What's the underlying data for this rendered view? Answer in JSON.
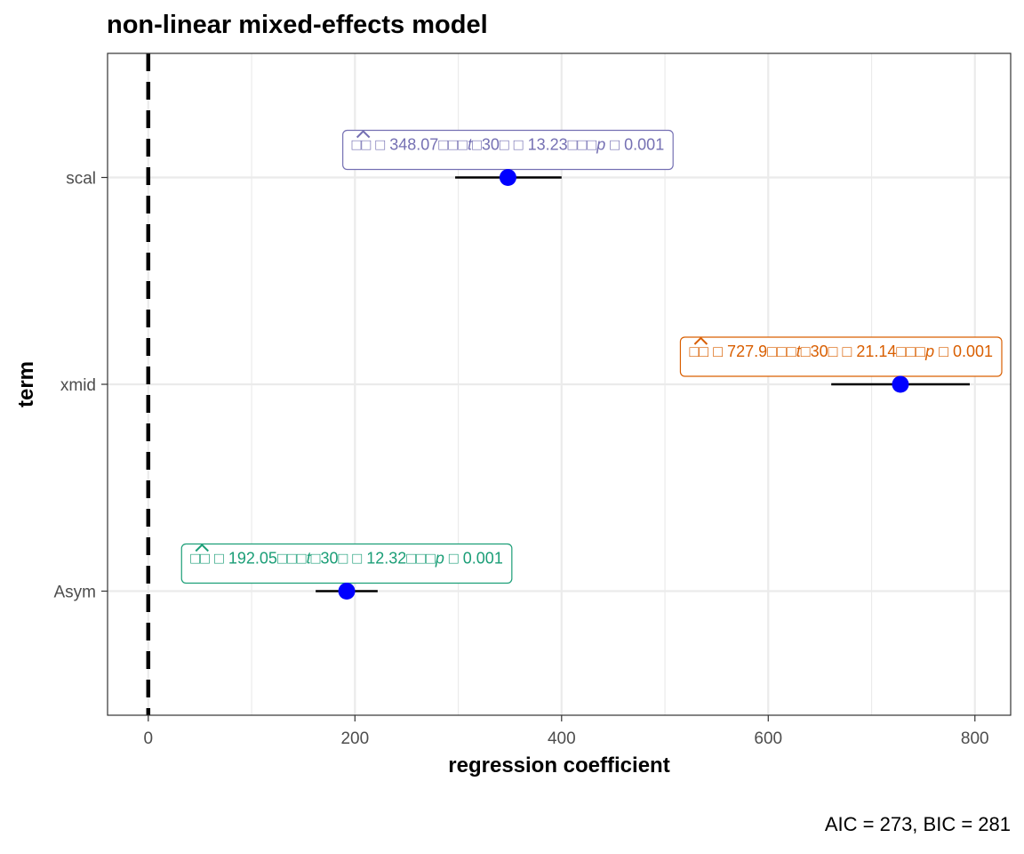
{
  "chart_data": {
    "type": "scatter",
    "title": "non-linear mixed-effects model",
    "xlabel": "regression coefficient",
    "ylabel": "term",
    "xlim": [
      -39.4,
      834.6
    ],
    "x_ticks": [
      0,
      200,
      400,
      600,
      800
    ],
    "x_minor_ticks": [
      100,
      300,
      500,
      700
    ],
    "categories": [
      "Asym",
      "xmid",
      "scal"
    ],
    "estimates": [
      192.05,
      727.9,
      348.07
    ],
    "ci_low": [
      162,
      661,
      297
    ],
    "ci_high": [
      222,
      795,
      400
    ],
    "reference_line": 0,
    "point_color": "#0000ff",
    "grid": true,
    "caption": "AIC = 273, BIC = 281",
    "annotations": [
      {
        "term": "Asym",
        "color": "#1b9e77",
        "parts": [
          "□□",
          " □ 192.05□□□",
          "t",
          "□30□",
          " □ 12.32□□□",
          "p",
          " □ 0.001"
        ]
      },
      {
        "term": "xmid",
        "color": "#d95f02",
        "parts": [
          "□□",
          " □ 727.9□□□",
          "t",
          "□30□",
          " □ 21.14□□□",
          "p",
          " □ 0.001"
        ]
      },
      {
        "term": "scal",
        "color": "#7570b3",
        "parts": [
          "□□",
          " □ 348.07□□□",
          "t",
          "□30□",
          " □ 13.23□□□",
          "p",
          " □ 0.001"
        ]
      }
    ]
  }
}
